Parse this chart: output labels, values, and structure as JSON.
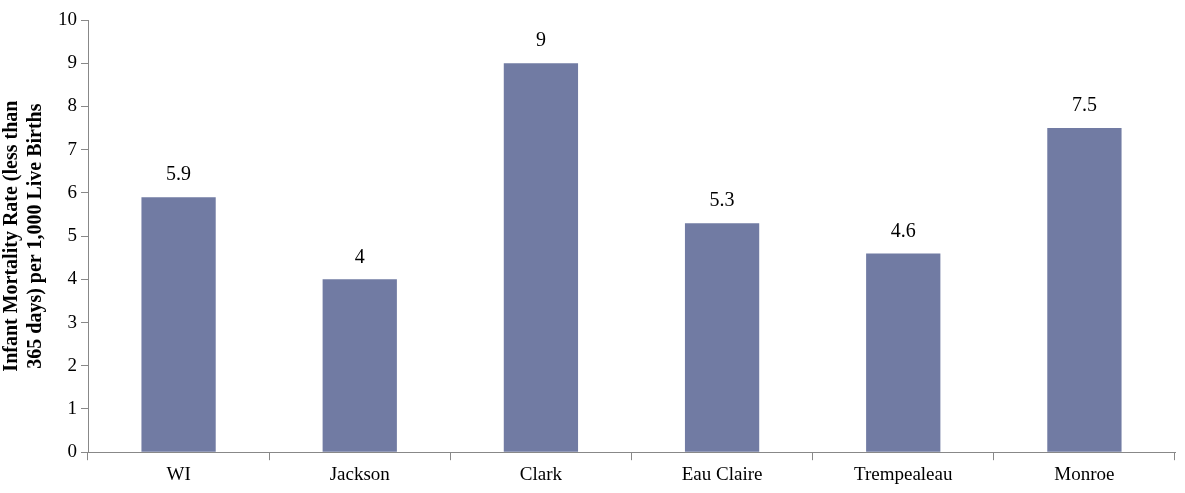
{
  "chart_data": {
    "type": "bar",
    "ylabel": "Infant Mortality Rate (less than 365 days) per 1,000 Live Births",
    "categories": [
      "WI",
      "Jackson",
      "Clark",
      "Eau Claire",
      "Trempealeau",
      "Monroe"
    ],
    "values": [
      5.9,
      4,
      9,
      5.3,
      4.6,
      7.5
    ],
    "color": "#717ba3",
    "ylim": [
      0,
      10
    ],
    "yticks": [
      0,
      1,
      2,
      3,
      4,
      5,
      6,
      7,
      8,
      9,
      10
    ],
    "grid": false,
    "legend": false,
    "data_labels": true
  }
}
